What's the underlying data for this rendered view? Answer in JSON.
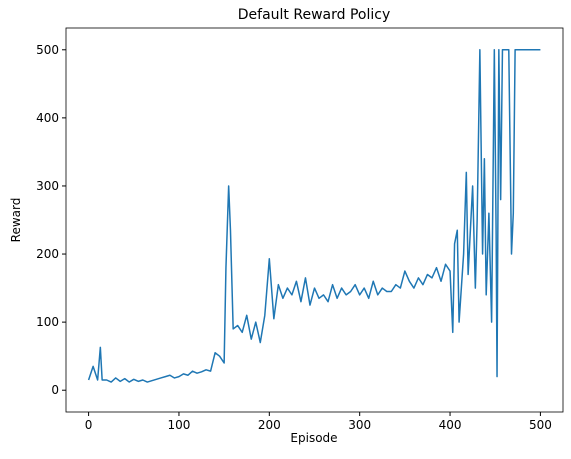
{
  "chart_data": {
    "type": "line",
    "title": "Default Reward Policy",
    "x_label": "Episode",
    "y_label": "Reward",
    "x": [
      0,
      5,
      10,
      13,
      15,
      20,
      25,
      30,
      35,
      40,
      45,
      50,
      55,
      60,
      65,
      70,
      75,
      80,
      85,
      90,
      95,
      100,
      105,
      110,
      115,
      120,
      125,
      130,
      135,
      140,
      145,
      150,
      152,
      155,
      157,
      160,
      165,
      170,
      175,
      180,
      185,
      190,
      195,
      200,
      205,
      210,
      215,
      220,
      225,
      230,
      235,
      240,
      245,
      250,
      255,
      260,
      265,
      270,
      275,
      280,
      285,
      290,
      295,
      300,
      305,
      310,
      315,
      320,
      325,
      330,
      335,
      340,
      345,
      350,
      355,
      360,
      365,
      370,
      375,
      380,
      385,
      390,
      395,
      400,
      403,
      405,
      408,
      410,
      415,
      418,
      420,
      425,
      428,
      430,
      433,
      436,
      438,
      440,
      443,
      446,
      449,
      451,
      452,
      454,
      456,
      458,
      462,
      465,
      468,
      470,
      472,
      480,
      490,
      500
    ],
    "series": [
      {
        "name": "Reward",
        "color": "#1f77b4",
        "values": [
          15,
          35,
          15,
          63,
          15,
          15,
          12,
          18,
          13,
          17,
          12,
          16,
          13,
          15,
          12,
          14,
          16,
          18,
          20,
          22,
          18,
          20,
          24,
          22,
          28,
          25,
          27,
          30,
          28,
          55,
          50,
          40,
          180,
          300,
          235,
          90,
          95,
          85,
          110,
          75,
          100,
          70,
          110,
          193,
          105,
          155,
          135,
          150,
          140,
          160,
          130,
          165,
          125,
          150,
          135,
          140,
          130,
          155,
          135,
          150,
          140,
          145,
          155,
          140,
          150,
          135,
          160,
          140,
          150,
          145,
          145,
          155,
          150,
          175,
          160,
          150,
          165,
          155,
          170,
          165,
          180,
          160,
          185,
          175,
          85,
          215,
          235,
          100,
          200,
          320,
          170,
          300,
          150,
          250,
          500,
          200,
          340,
          140,
          260,
          100,
          500,
          230,
          20,
          500,
          280,
          500,
          500,
          500,
          200,
          260,
          500,
          500,
          500,
          500
        ]
      }
    ],
    "xlim": [
      -25,
      525
    ],
    "ylim": [
      -32,
      532
    ],
    "xticks": [
      0,
      100,
      200,
      300,
      400,
      500
    ],
    "yticks": [
      0,
      100,
      200,
      300,
      400,
      500
    ]
  }
}
